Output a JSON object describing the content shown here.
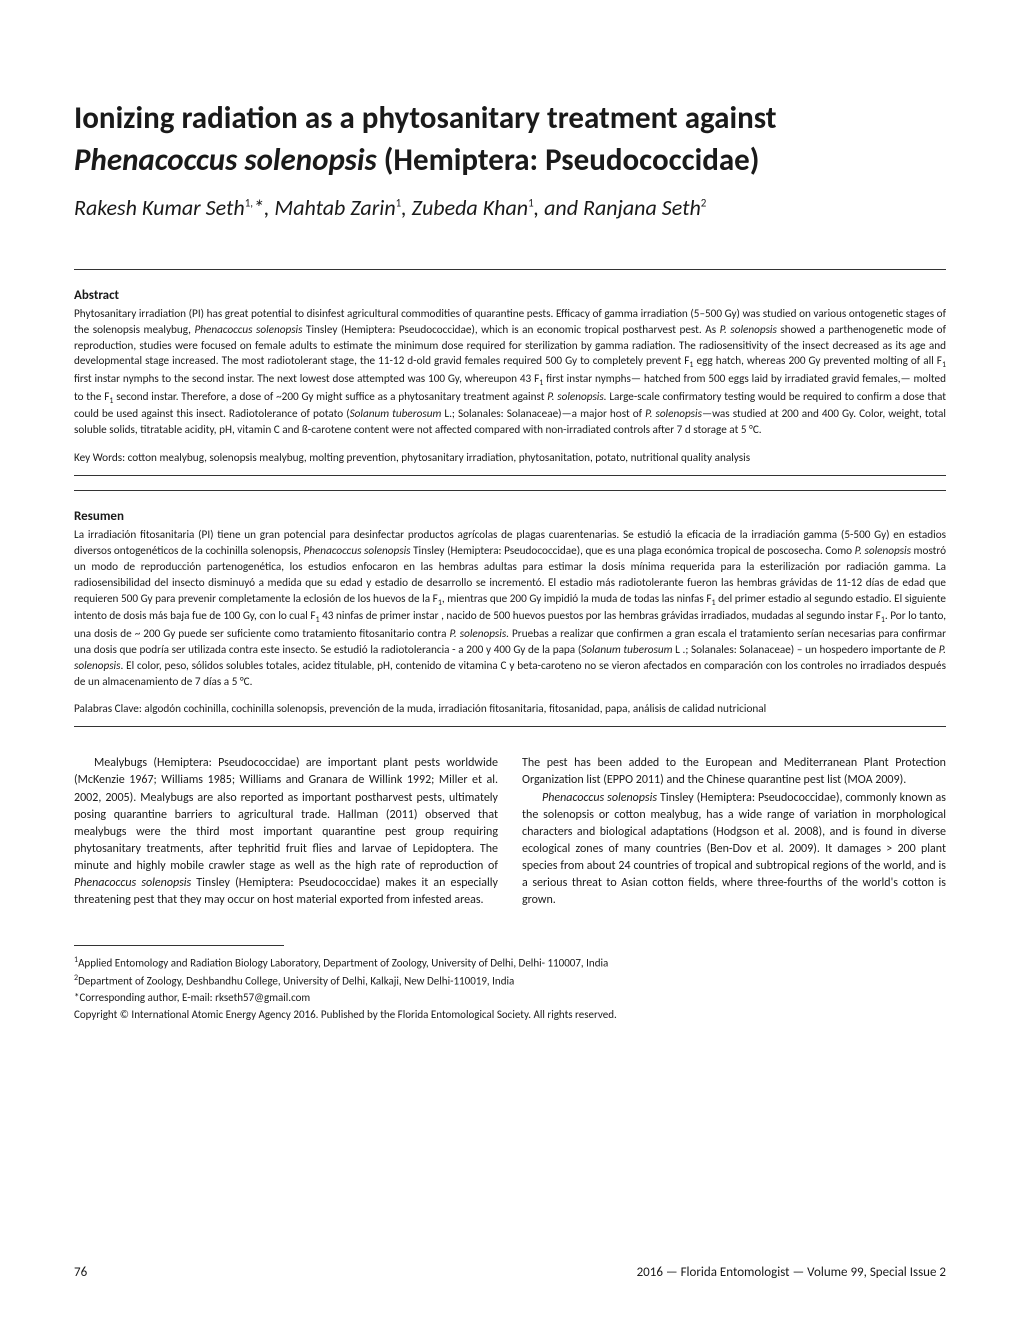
{
  "title_line1": "Ionizing radiation as a phytosanitary treatment against",
  "title_species": "Phenacoccus solenopsis",
  "title_line2_suffix": " (Hemiptera: Pseudococcidae)",
  "authors_html": "Rakesh Kumar Seth<sup>1,</sup>*, Mahtab Zarin<sup>1</sup>, Zubeda Khan<sup>1</sup>, and Ranjana Seth<sup>2</sup>",
  "abstract_heading": "Abstract",
  "abstract_body": "Phytosanitary irradiation (PI) has great potential to disinfest agricultural commodities of quarantine pests. Efficacy of gamma irradiation (5–500 Gy) was studied on various ontogenetic stages of the solenopsis mealybug, <span class=\"ital\">Phenacoccus solenopsis</span> Tinsley (Hemiptera: Pseudococcidae), which is an economic tropical postharvest pest. As <span class=\"ital\">P. solenopsis</span> showed a parthenogenetic mode of reproduction, studies were focused on female adults to estimate the minimum dose required for sterilization by gamma radiation. The radiosensitivity of the insect decreased as its age and developmental stage increased. The most radiotolerant stage, the 11-12 d-old gravid females required 500 Gy to completely prevent F<sub>1</sub> egg hatch, whereas 200 Gy prevented molting of all F<sub>1</sub> first instar nymphs to the second instar. The next lowest dose attempted was 100 Gy, whereupon 43 F<sub>1</sub> first instar nymphs— hatched from 500 eggs laid by irradiated gravid females,— molted to the F<sub>1</sub> second instar. Therefore, a dose of ~200 Gy might suffice as a phytosanitary treatment against <span class=\"ital\">P. solenopsis.</span> Large-scale confirmatory testing would be required to confirm a dose that could be used against this insect. Radiotolerance of potato (<span class=\"ital\">Solanum tuberosum</span> L.; Solanales: Solanaceae)—a major host of <span class=\"ital\">P. solenopsis</span>—was studied at 200 and 400 Gy. Color, weight, total soluble solids, titratable acidity, pH, vitamin C and ß-carotene content were not affected compared with non-irradiated controls after 7 d storage at 5 °C.",
  "keywords_label": "Key Words: ",
  "keywords_text": "cotton mealybug, solenopsis mealybug, molting prevention, phytosanitary irradiation, phytosanitation, potato, nutritional quality analysis",
  "resumen_heading": "Resumen",
  "resumen_body": "La irradiación fitosanitaria (PI) tiene un gran potencial para desinfectar productos agrícolas de plagas cuarentenarias. Se estudió la eficacia de la irradiación gamma (5-500 Gy) en estadios diversos ontogenéticos de la cochinilla solenopsis, <span class=\"ital\">Phenacoccus solenopsis</span> Tinsley (Hemiptera: Pseudococcidae), que es una plaga económica tropical de poscosecha. Como <span class=\"ital\">P. solenopsis</span> mostró un modo de reproducción partenogenética, los estudios enfocaron en las hembras adultas para estimar la dosis mínima requerida para la esterilización por radiación gamma. La radiosensibilidad del insecto disminuyó a medida que su edad y estadio de desarrollo se incrementó. El estadio más radiotolerante fueron las hembras grávidas de 11-12 días de edad que requieren 500 Gy para prevenir completamente la eclosión de los huevos de la F<sub>1</sub>, mientras que 200 Gy impidió la muda de todas las ninfas F<sub>1</sub> del primer estadio al segundo estadio. El siguiente intento de dosis más baja fue de 100 Gy, con lo cual F<sub>1</sub> 43 ninfas de primer instar , nacido de 500 huevos puestos por las hembras grávidas irradiados, mudadas al segundo instar F<sub>1</sub>. Por lo tanto, una dosis de ~ 200 Gy puede ser suficiente como tratamiento fitosanitario contra <span class=\"ital\">P. solenopsis.</span> Pruebas a realizar que confirmen a gran escala el tratamiento serían necesarias para confirmar una dosis que podría ser utilizada contra este insecto. Se estudió la radiotolerancia - a 200 y 400 Gy de la papa (<span class=\"ital\">Solanum tuberosum</span> L .; Solanales: Solanaceae) – un hospedero importante de <span class=\"ital\">P. solenopsis</span>. El color, peso, sólidos solubles totales, acidez titulable, pH, contenido de vitamina C y beta-caroteno no se vieron afectados en comparación con los controles no irradiados después de un almacenamiento de 7 días a 5 °C.",
  "palabras_label": "Palabras Clave: ",
  "palabras_text": "algodón cochinilla, cochinilla solenopsis, prevención de la muda, irradiación fitosanitaria, fitosanidad, papa, análisis de calidad nutricional",
  "col_left_html": "<p class=\"indent\">Mealybugs (Hemiptera: Pseudococcidae) are important plant pests worldwide (McKenzie 1967; Williams 1985; Williams and Granara de Willink 1992; Miller et al. 2002, 2005). Mealybugs are also reported as important postharvest pests, ultimately posing quarantine barriers to agricultural trade. Hallman (2011) observed that mealybugs were the third most important quarantine pest group requiring phytosanitary treatments, after tephritid fruit flies and larvae of Lepidoptera. The minute and highly mobile crawler stage as well as the high rate of reproduction of <span class=\"ital\">Phenacoccus solenopsis</span> Tinsley (Hemiptera: Pseudococcidae) makes it an especially threatening pest that they may occur on host material exported from infested areas.</p>",
  "col_right_html": "<p>The pest has been added to the European and Mediterranean Plant Protection Organization list (EPPO 2011) and the Chinese quarantine pest list (MOA 2009).</p><p class=\"indent\"><span class=\"ital\">Phenacoccus solenopsis</span> Tinsley (Hemiptera: Pseudococcidae), commonly known as the solenopsis or cotton mealybug, has a wide range of variation in morphological characters and biological adaptations (Hodgson et al. 2008), and is found in diverse ecological zones of many countries (Ben-Dov et al. 2009). It damages &gt; 200 plant species from about 24 countries of tropical and subtropical regions of the world, and is a serious threat to Asian cotton fields, where three-fourths of the world's cotton is grown.</p>",
  "footnote1": "<sup>1</sup>Applied Entomology and Radiation Biology Laboratory, Department of Zoology, University of Delhi, Delhi- 110007, India",
  "footnote2": "<sup>2</sup>Department of Zoology, Deshbandhu College, University of Delhi, Kalkaji, New Delhi-110019, India",
  "footnote3": "*Corresponding author, E-mail: rkseth57@gmail.com",
  "footnote4": "Copyright © International Atomic Energy Agency 2016. Published by the Florida Entomological Society. All rights reserved.",
  "page_number": "76",
  "footer_right": "2016 — Florida Entomologist — Volume 99, Special Issue 2"
}
